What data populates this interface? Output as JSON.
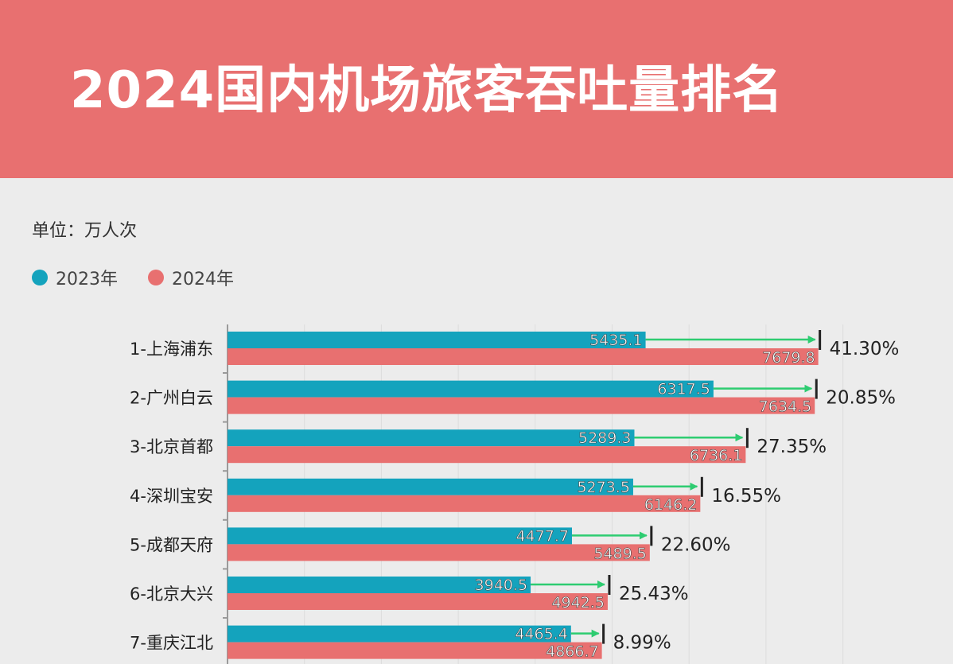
{
  "title": "2024国内机场旅客吞吐量排名",
  "unit_label": "单位：万人次",
  "colors": {
    "header": "#e87070",
    "y2023": "#14a3bd",
    "y2024": "#e87070",
    "arrow": "#2ecc71"
  },
  "chart_data": {
    "type": "bar",
    "orientation": "horizontal",
    "title": "2024国内机场旅客吞吐量排名",
    "unit": "单位：万人次",
    "legend_position": "top-left",
    "categories": [
      "1-上海浦东",
      "2-广州白云",
      "3-北京首都",
      "4-深圳宝安",
      "5-成都天府",
      "6-北京大兴",
      "7-重庆江北"
    ],
    "series": [
      {
        "name": "2023年",
        "values": [
          5435.1,
          6317.5,
          5289.3,
          5273.5,
          4477.7,
          3940.5,
          4465.4
        ]
      },
      {
        "name": "2024年",
        "values": [
          7679.8,
          7634.5,
          6736.1,
          6146.2,
          5489.5,
          4942.5,
          4866.7
        ]
      }
    ],
    "growth_labels": [
      "41.30%",
      "20.85%",
      "27.35%",
      "16.55%",
      "22.60%",
      "25.43%",
      "8.99%"
    ],
    "value_labels_2023": [
      "5435.1",
      "6317.5",
      "5289.3",
      "5273.5",
      "4477.7",
      "3940.5",
      "4465.4"
    ],
    "value_labels_2024": [
      "7679.8",
      "7634.5",
      "6736.1",
      "6146.2",
      "5489.5",
      "4942.5",
      "4866.7"
    ]
  }
}
